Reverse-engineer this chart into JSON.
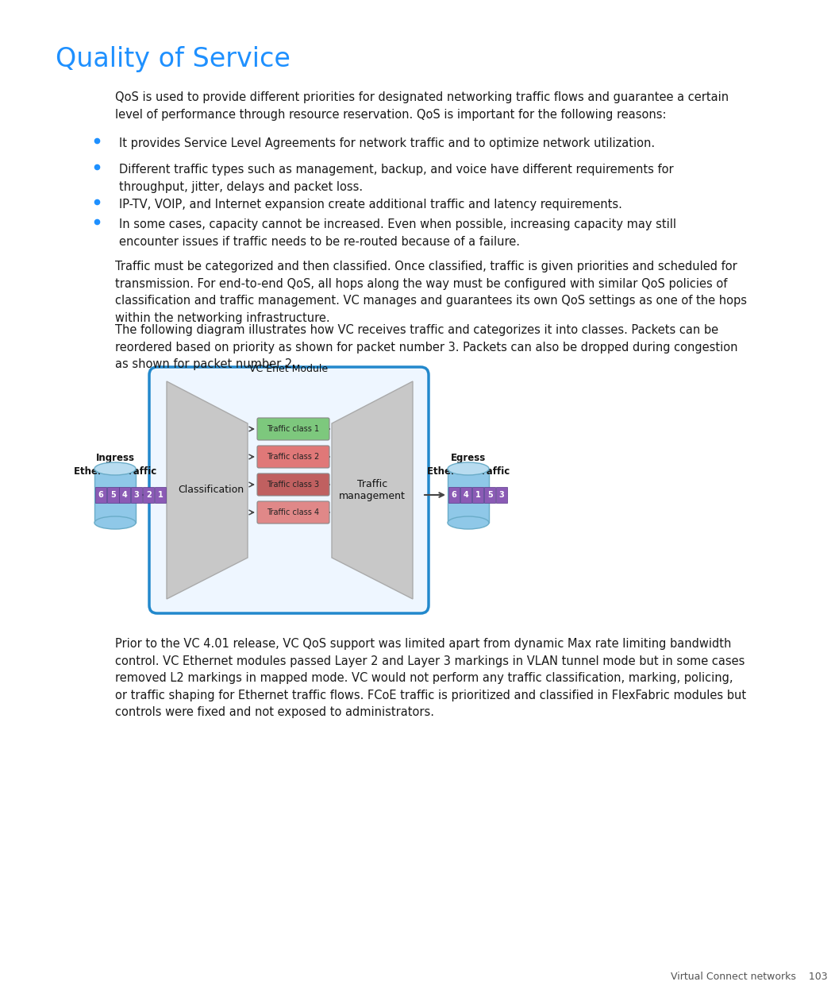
{
  "title": "Quality of Service",
  "title_color": "#1E90FF",
  "title_fontsize": 24,
  "body_fontsize": 10.5,
  "bg_color": "#FFFFFF",
  "text_color": "#1A1A1A",
  "bullet_color": "#1E90FF",
  "intro_text": "QoS is used to provide different priorities for designated networking traffic flows and guarantee a certain\nlevel of performance through resource reservation. QoS is important for the following reasons:",
  "bullet1": "It provides Service Level Agreements for network traffic and to optimize network utilization.",
  "bullet2": "Different traffic types such as management, backup, and voice have different requirements for\nthroughput, jitter, delays and packet loss.",
  "bullet3": "IP-TV, VOIP, and Internet expansion create additional traffic and latency requirements.",
  "bullet4": "In some cases, capacity cannot be increased. Even when possible, increasing capacity may still\nencounter issues if traffic needs to be re-routed because of a failure.",
  "para1": "Traffic must be categorized and then classified. Once classified, traffic is given priorities and scheduled for\ntransmission. For end-to-end QoS, all hops along the way must be configured with similar QoS policies of\nclassification and traffic management. VC manages and guarantees its own QoS settings as one of the hops\nwithin the networking infrastructure.",
  "para2": "The following diagram illustrates how VC receives traffic and categorizes it into classes. Packets can be\nreordered based on priority as shown for packet number 3. Packets can also be dropped during congestion\nas shown for packet number 2.",
  "para3": "Prior to the VC 4.01 release, VC QoS support was limited apart from dynamic Max rate limiting bandwidth\ncontrol. VC Ethernet modules passed Layer 2 and Layer 3 markings in VLAN tunnel mode but in some cases\nremoved L2 markings in mapped mode. VC would not perform any traffic classification, marking, policing,\nor traffic shaping for Ethernet traffic flows. FCoE traffic is prioritized and classified in FlexFabric modules but\ncontrols were fixed and not exposed to administrators.",
  "footer_text": "Virtual Connect networks    103",
  "footer_fontsize": 9,
  "diagram_label": "VC Enet Module",
  "ingress_label": "Ingress\nEthernet Traffic",
  "egress_label": "Egress\nEthernet Traffic",
  "classification_label": "Classification",
  "traffic_mgmt_label": "Traffic\nmanagement",
  "traffic_classes": [
    "Traffic class 1",
    "Traffic class 2",
    "Traffic class 3",
    "Traffic class 4"
  ],
  "traffic_class_colors": [
    "#7DC87D",
    "#E07878",
    "#C06060",
    "#E08888"
  ],
  "ingress_packets": [
    "6",
    "5",
    "4",
    "3",
    "2",
    "1"
  ],
  "egress_packets": [
    "6",
    "4",
    "1",
    "5",
    "3"
  ],
  "packet_bg": "#8B5BB5",
  "cylinder_color_top": "#B8DCF0",
  "cylinder_color_body": "#8FC8E8",
  "module_border_color": "#2288CC",
  "module_fill_color": "#EEF6FF",
  "arrow_color": "#444444",
  "trapezoid_color": "#C8C8C8",
  "trapezoid_edge": "#AAAAAA"
}
